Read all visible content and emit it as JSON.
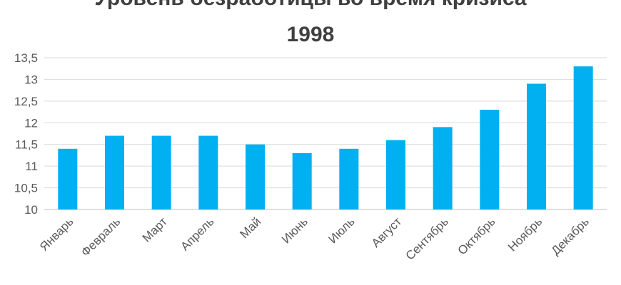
{
  "chart_data": {
    "type": "bar",
    "title_lines": [
      "Уровень безработицы во время кризиса",
      "1998"
    ],
    "categories": [
      "Январь",
      "Февраль",
      "Март",
      "Апрель",
      "Май",
      "Июнь",
      "Июль",
      "Август",
      "Сентябрь",
      "Октябрь",
      "Ноябрь",
      "Декабрь"
    ],
    "series": [
      {
        "values": [
          11.4,
          11.7,
          11.7,
          11.7,
          11.5,
          11.3,
          11.4,
          11.6,
          11.9,
          12.3,
          12.9,
          13.3
        ]
      }
    ],
    "ylim": [
      10,
      13.5
    ],
    "yticks": [
      "10",
      "10,5",
      "11",
      "11,5",
      "12",
      "12,5",
      "13",
      "13,5"
    ],
    "ytick_values": [
      10,
      10.5,
      11,
      11.5,
      12,
      12.5,
      13,
      13.5
    ],
    "grid": true,
    "xlabel": "",
    "ylabel": "",
    "colors": {
      "bar": "#00B0F0",
      "grid": "#D9D9D9",
      "axis": "#BFBFBF",
      "text": "#595959",
      "title": "#404040"
    }
  }
}
